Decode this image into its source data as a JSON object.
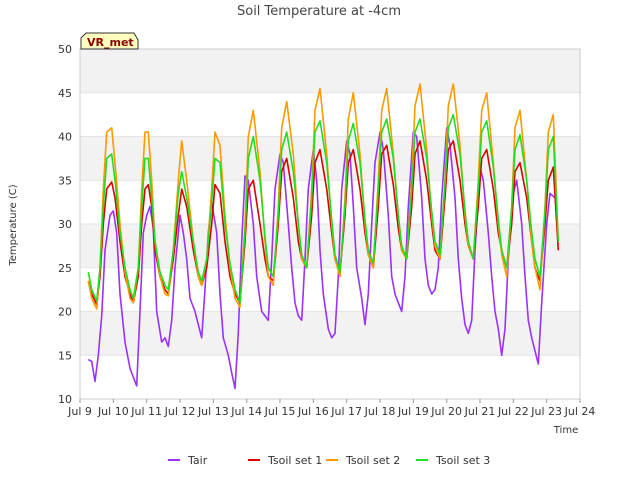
{
  "chart_data": {
    "type": "line",
    "title": "Soil Temperature at -4cm",
    "xlabel": "Time",
    "ylabel": "Temperature (C)",
    "badge": "VR_met",
    "xlim": [
      9,
      24
    ],
    "ylim": [
      10,
      50
    ],
    "x_ticks": [
      9,
      10,
      11,
      12,
      13,
      14,
      15,
      16,
      17,
      18,
      19,
      20,
      21,
      22,
      23,
      24
    ],
    "x_tick_labels": [
      "Jul 9",
      "Jul 10",
      "Jul 11",
      "Jul 12",
      "Jul 13",
      "Jul 14",
      "Jul 15",
      "Jul 16",
      "Jul 17",
      "Jul 18",
      "Jul 19",
      "Jul 20",
      "Jul 21",
      "Jul 22",
      "Jul 23",
      "Jul 24"
    ],
    "y_ticks": [
      10,
      15,
      20,
      25,
      30,
      35,
      40,
      45,
      50
    ],
    "grid": "horizontal bands",
    "legend_position": "bottom",
    "series": [
      {
        "name": "Tair",
        "color": "#9b30ff",
        "x": [
          9.25,
          9.35,
          9.45,
          9.55,
          9.65,
          9.75,
          9.9,
          10.0,
          10.1,
          10.2,
          10.35,
          10.5,
          10.6,
          10.7,
          10.8,
          10.9,
          11.0,
          11.1,
          11.2,
          11.3,
          11.45,
          11.55,
          11.65,
          11.75,
          11.85,
          12.0,
          12.1,
          12.2,
          12.3,
          12.45,
          12.55,
          12.65,
          12.75,
          12.85,
          12.95,
          13.1,
          13.2,
          13.3,
          13.45,
          13.55,
          13.65,
          13.75,
          13.85,
          13.95,
          14.05,
          14.2,
          14.3,
          14.45,
          14.55,
          14.65,
          14.75,
          14.85,
          15.0,
          15.1,
          15.25,
          15.35,
          15.45,
          15.55,
          15.65,
          15.75,
          15.85,
          16.0,
          16.1,
          16.2,
          16.3,
          16.45,
          16.55,
          16.65,
          16.75,
          16.85,
          17.0,
          17.1,
          17.2,
          17.3,
          17.45,
          17.55,
          17.65,
          17.75,
          17.85,
          18.0,
          18.1,
          18.25,
          18.35,
          18.45,
          18.55,
          18.65,
          18.75,
          18.85,
          19.0,
          19.1,
          19.25,
          19.35,
          19.45,
          19.55,
          19.65,
          19.75,
          19.85,
          20.0,
          20.1,
          20.25,
          20.35,
          20.45,
          20.55,
          20.65,
          20.75,
          20.85,
          21.0,
          21.1,
          21.25,
          21.35,
          21.45,
          21.55,
          21.65,
          21.75,
          21.85,
          22.0,
          22.1,
          22.25,
          22.35,
          22.45,
          22.55,
          22.65,
          22.75,
          22.85,
          23.0,
          23.1,
          23.25
        ],
        "y": [
          14.5,
          14.3,
          12.0,
          15.0,
          19.5,
          27.0,
          31.0,
          31.5,
          29.0,
          22.0,
          16.5,
          13.5,
          12.5,
          11.5,
          20.0,
          29.0,
          31.0,
          32.0,
          29.5,
          20.0,
          16.5,
          17.0,
          16.0,
          19.0,
          25.0,
          31.0,
          29.0,
          26.0,
          21.5,
          20.0,
          18.5,
          17.0,
          22.5,
          29.0,
          32.5,
          29.0,
          22.0,
          17.0,
          15.0,
          13.0,
          11.2,
          17.5,
          28.0,
          35.5,
          35.0,
          30.0,
          24.0,
          20.0,
          19.5,
          19.0,
          26.0,
          34.0,
          38.0,
          37.0,
          30.0,
          25.0,
          21.0,
          19.5,
          19.0,
          26.0,
          34.0,
          38.5,
          35.0,
          27.0,
          22.0,
          18.0,
          17.0,
          17.5,
          24.0,
          34.0,
          39.5,
          38.0,
          32.0,
          25.0,
          21.5,
          18.5,
          22.0,
          30.0,
          37.0,
          40.5,
          38.5,
          31.0,
          24.0,
          22.0,
          21.0,
          20.0,
          24.0,
          32.0,
          40.5,
          40.0,
          33.0,
          26.0,
          23.0,
          22.0,
          22.5,
          25.0,
          33.0,
          41.0,
          39.0,
          33.0,
          26.0,
          21.5,
          18.5,
          17.5,
          19.0,
          27.0,
          36.5,
          35.0,
          29.0,
          24.0,
          20.0,
          18.0,
          15.0,
          18.0,
          26.0,
          33.5,
          35.0,
          30.0,
          24.0,
          19.0,
          17.0,
          15.5,
          14.0,
          21.0,
          30.0,
          33.5,
          33.0
        ]
      },
      {
        "name": "Tsoil set 1",
        "color": "#dd0000",
        "x": [
          9.25,
          9.35,
          9.5,
          9.6,
          9.7,
          9.8,
          9.95,
          10.05,
          10.2,
          10.35,
          10.5,
          10.6,
          10.75,
          10.85,
          10.95,
          11.05,
          11.15,
          11.25,
          11.4,
          11.55,
          11.65,
          11.8,
          11.95,
          12.05,
          12.2,
          12.4,
          12.55,
          12.65,
          12.8,
          12.95,
          13.05,
          13.2,
          13.35,
          13.5,
          13.65,
          13.8,
          13.95,
          14.05,
          14.2,
          14.4,
          14.55,
          14.65,
          14.8,
          14.95,
          15.05,
          15.2,
          15.4,
          15.55,
          15.65,
          15.8,
          15.95,
          16.05,
          16.2,
          16.4,
          16.55,
          16.65,
          16.8,
          16.95,
          17.05,
          17.2,
          17.4,
          17.55,
          17.65,
          17.8,
          17.95,
          18.05,
          18.2,
          18.4,
          18.55,
          18.65,
          18.8,
          18.95,
          19.05,
          19.2,
          19.4,
          19.55,
          19.65,
          19.8,
          19.95,
          20.05,
          20.2,
          20.4,
          20.55,
          20.65,
          20.8,
          20.95,
          21.05,
          21.2,
          21.4,
          21.55,
          21.65,
          21.8,
          21.95,
          22.05,
          22.2,
          22.4,
          22.55,
          22.65,
          22.8,
          22.95,
          23.05,
          23.2,
          23.35
        ],
        "y": [
          23.5,
          22.0,
          20.8,
          24.0,
          30.0,
          34.0,
          34.8,
          33.0,
          28.0,
          24.0,
          22.0,
          21.0,
          24.0,
          30.0,
          34.0,
          34.5,
          32.0,
          27.0,
          24.0,
          22.5,
          22.0,
          26.0,
          31.0,
          34.0,
          32.0,
          27.0,
          24.0,
          23.0,
          25.0,
          30.0,
          34.5,
          33.5,
          28.0,
          24.0,
          22.0,
          21.0,
          28.0,
          34.0,
          35.0,
          30.0,
          26.0,
          24.0,
          23.5,
          30.0,
          36.0,
          37.5,
          33.0,
          28.0,
          26.0,
          25.0,
          31.0,
          37.0,
          38.5,
          34.0,
          29.0,
          26.0,
          24.5,
          31.0,
          37.0,
          38.5,
          34.0,
          29.0,
          26.5,
          25.0,
          32.0,
          38.0,
          39.0,
          34.5,
          29.5,
          27.0,
          26.0,
          32.0,
          38.0,
          39.5,
          35.0,
          30.0,
          27.0,
          26.0,
          33.0,
          38.5,
          39.5,
          35.0,
          30.0,
          27.5,
          26.0,
          32.0,
          37.5,
          38.5,
          34.0,
          29.0,
          27.0,
          25.0,
          30.0,
          36.0,
          37.0,
          33.0,
          28.0,
          25.0,
          23.5,
          30.0,
          35.0,
          36.5,
          27.0
        ]
      },
      {
        "name": "Tsoil set 2",
        "color": "#ff9900",
        "x": [
          9.25,
          9.35,
          9.5,
          9.6,
          9.7,
          9.8,
          9.95,
          10.05,
          10.2,
          10.35,
          10.5,
          10.6,
          10.75,
          10.85,
          10.95,
          11.05,
          11.15,
          11.25,
          11.4,
          11.55,
          11.65,
          11.8,
          11.95,
          12.05,
          12.2,
          12.4,
          12.55,
          12.65,
          12.8,
          12.95,
          13.05,
          13.2,
          13.35,
          13.5,
          13.65,
          13.8,
          13.95,
          14.05,
          14.2,
          14.4,
          14.55,
          14.65,
          14.8,
          14.95,
          15.05,
          15.2,
          15.4,
          15.55,
          15.65,
          15.8,
          15.95,
          16.05,
          16.2,
          16.4,
          16.55,
          16.65,
          16.8,
          16.95,
          17.05,
          17.2,
          17.4,
          17.55,
          17.65,
          17.8,
          17.95,
          18.05,
          18.2,
          18.4,
          18.55,
          18.65,
          18.8,
          18.95,
          19.05,
          19.2,
          19.4,
          19.55,
          19.65,
          19.8,
          19.95,
          20.05,
          20.2,
          20.4,
          20.55,
          20.65,
          20.8,
          20.95,
          21.05,
          21.2,
          21.4,
          21.55,
          21.65,
          21.8,
          21.95,
          22.05,
          22.2,
          22.4,
          22.55,
          22.65,
          22.8,
          22.95,
          23.05,
          23.2,
          23.35
        ],
        "y": [
          23.5,
          21.5,
          20.3,
          25.0,
          34.0,
          40.5,
          41.0,
          37.0,
          30.0,
          24.5,
          21.5,
          21.0,
          25.0,
          34.0,
          40.5,
          40.5,
          35.0,
          28.0,
          24.0,
          22.0,
          21.8,
          27.0,
          35.0,
          39.5,
          35.0,
          28.0,
          24.0,
          23.0,
          26.0,
          34.0,
          40.5,
          39.0,
          31.0,
          25.0,
          21.5,
          20.5,
          30.0,
          40.0,
          43.0,
          36.0,
          28.0,
          24.0,
          23.0,
          32.0,
          41.0,
          44.0,
          38.0,
          30.0,
          26.0,
          25.0,
          34.0,
          43.0,
          45.5,
          38.0,
          30.0,
          26.0,
          24.0,
          33.0,
          42.0,
          45.0,
          38.0,
          30.0,
          26.5,
          25.0,
          35.0,
          43.0,
          45.5,
          38.0,
          31.0,
          27.0,
          26.0,
          35.0,
          43.5,
          46.0,
          38.5,
          31.0,
          27.5,
          26.0,
          35.0,
          43.5,
          46.0,
          39.0,
          31.0,
          27.5,
          26.0,
          35.0,
          43.0,
          45.0,
          37.0,
          30.0,
          26.5,
          24.0,
          32.0,
          41.0,
          43.0,
          35.0,
          28.0,
          25.0,
          22.5,
          32.0,
          40.5,
          42.5,
          28.0
        ]
      },
      {
        "name": "Tsoil set 3",
        "color": "#22dd22",
        "x": [
          9.25,
          9.35,
          9.5,
          9.6,
          9.7,
          9.8,
          9.95,
          10.05,
          10.2,
          10.35,
          10.5,
          10.6,
          10.75,
          10.85,
          10.95,
          11.05,
          11.15,
          11.25,
          11.4,
          11.55,
          11.65,
          11.8,
          11.95,
          12.05,
          12.2,
          12.4,
          12.55,
          12.65,
          12.8,
          12.95,
          13.05,
          13.2,
          13.35,
          13.5,
          13.65,
          13.8,
          13.95,
          14.05,
          14.2,
          14.4,
          14.55,
          14.65,
          14.8,
          14.95,
          15.05,
          15.2,
          15.4,
          15.55,
          15.65,
          15.8,
          15.95,
          16.05,
          16.2,
          16.4,
          16.55,
          16.65,
          16.8,
          16.95,
          17.05,
          17.2,
          17.4,
          17.55,
          17.65,
          17.8,
          17.95,
          18.05,
          18.2,
          18.4,
          18.55,
          18.65,
          18.8,
          18.95,
          19.05,
          19.2,
          19.4,
          19.55,
          19.65,
          19.8,
          19.95,
          20.05,
          20.2,
          20.4,
          20.55,
          20.65,
          20.8,
          20.95,
          21.05,
          21.2,
          21.4,
          21.55,
          21.65,
          21.8,
          21.95,
          22.05,
          22.2,
          22.4,
          22.55,
          22.65,
          22.8,
          22.95,
          23.05,
          23.2,
          23.35
        ],
        "y": [
          24.5,
          22.5,
          21.2,
          25.0,
          32.0,
          37.5,
          38.0,
          35.0,
          29.0,
          25.0,
          22.5,
          21.5,
          25.0,
          32.0,
          37.5,
          37.5,
          33.0,
          28.0,
          24.5,
          23.0,
          22.5,
          27.0,
          33.5,
          36.0,
          33.0,
          28.0,
          24.5,
          23.5,
          26.0,
          32.5,
          37.5,
          37.0,
          30.0,
          25.5,
          22.5,
          21.0,
          29.0,
          37.5,
          40.0,
          35.0,
          28.5,
          25.0,
          24.0,
          31.0,
          38.5,
          40.5,
          36.0,
          30.0,
          26.5,
          25.0,
          33.0,
          40.5,
          41.8,
          37.0,
          30.5,
          26.5,
          24.5,
          32.0,
          39.5,
          41.5,
          37.0,
          30.5,
          27.0,
          25.5,
          34.0,
          40.5,
          42.0,
          37.5,
          31.0,
          27.5,
          26.0,
          34.0,
          40.5,
          42.0,
          37.5,
          31.5,
          28.0,
          26.5,
          34.5,
          41.0,
          42.5,
          38.0,
          31.5,
          28.0,
          26.0,
          34.0,
          40.5,
          41.8,
          36.5,
          30.5,
          27.0,
          25.0,
          32.0,
          38.5,
          40.2,
          35.0,
          29.0,
          26.0,
          24.0,
          31.5,
          38.5,
          40.0,
          28.0
        ]
      }
    ]
  }
}
